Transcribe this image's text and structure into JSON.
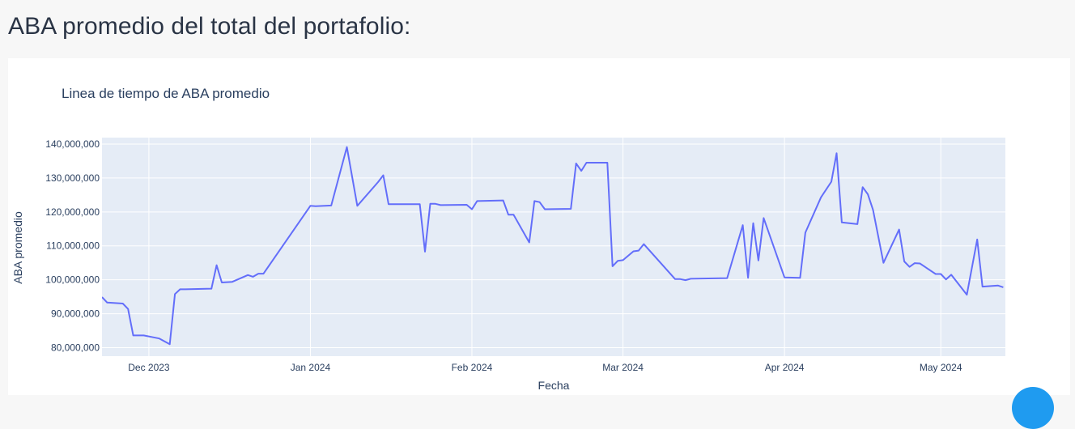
{
  "header": {
    "title": "ABA promedio del total del portafolio:"
  },
  "chart_data": {
    "type": "line",
    "title": "Linea de tiempo de ABA promedio",
    "xlabel": "Fecha",
    "ylabel": "ABA promedio",
    "xlim": [
      "2023-11-22",
      "2024-05-13"
    ],
    "ylim": [
      77500000,
      141900000
    ],
    "grid": true,
    "legend": "none",
    "line_color": "#636efa",
    "plot_bgcolor": "#e5ecf6",
    "x_ticks": [
      {
        "date": "2023-12-01",
        "label": "Dec 2023"
      },
      {
        "date": "2024-01-01",
        "label": "Jan 2024"
      },
      {
        "date": "2024-02-01",
        "label": "Feb 2024"
      },
      {
        "date": "2024-03-01",
        "label": "Mar 2024"
      },
      {
        "date": "2024-04-01",
        "label": "Apr 2024"
      },
      {
        "date": "2024-05-01",
        "label": "May 2024"
      }
    ],
    "y_ticks": [
      {
        "value": 80000000,
        "label": "80,000,000"
      },
      {
        "value": 90000000,
        "label": "90,000,000"
      },
      {
        "value": 100000000,
        "label": "100,000,000"
      },
      {
        "value": 110000000,
        "label": "110,000,000"
      },
      {
        "value": 120000000,
        "label": "120,000,000"
      },
      {
        "value": 130000000,
        "label": "130,000,000"
      },
      {
        "value": 140000000,
        "label": "140,000,000"
      }
    ],
    "x": [
      "2023-11-22",
      "2023-11-23",
      "2023-11-26",
      "2023-11-27",
      "2023-11-28",
      "2023-11-30",
      "2023-12-03",
      "2023-12-05",
      "2023-12-06",
      "2023-12-07",
      "2023-12-08",
      "2023-12-13",
      "2023-12-14",
      "2023-12-15",
      "2023-12-17",
      "2023-12-20",
      "2023-12-21",
      "2023-12-22",
      "2023-12-23",
      "2024-01-01",
      "2024-01-02",
      "2024-01-05",
      "2024-01-08",
      "2024-01-10",
      "2024-01-14",
      "2024-01-15",
      "2024-01-16",
      "2024-01-22",
      "2024-01-23",
      "2024-01-24",
      "2024-01-25",
      "2024-01-26",
      "2024-01-31",
      "2024-02-01",
      "2024-02-02",
      "2024-02-07",
      "2024-02-08",
      "2024-02-09",
      "2024-02-12",
      "2024-02-13",
      "2024-02-14",
      "2024-02-15",
      "2024-02-20",
      "2024-02-21",
      "2024-02-22",
      "2024-02-23",
      "2024-02-27",
      "2024-02-28",
      "2024-02-29",
      "2024-03-01",
      "2024-03-03",
      "2024-03-04",
      "2024-03-05",
      "2024-03-11",
      "2024-03-12",
      "2024-03-13",
      "2024-03-14",
      "2024-03-21",
      "2024-03-24",
      "2024-03-25",
      "2024-03-26",
      "2024-03-27",
      "2024-03-28",
      "2024-04-01",
      "2024-04-04",
      "2024-04-05",
      "2024-04-08",
      "2024-04-10",
      "2024-04-11",
      "2024-04-12",
      "2024-04-15",
      "2024-04-16",
      "2024-04-17",
      "2024-04-18",
      "2024-04-20",
      "2024-04-23",
      "2024-04-24",
      "2024-04-25",
      "2024-04-26",
      "2024-04-27",
      "2024-04-30",
      "2024-05-01",
      "2024-05-02",
      "2024-05-03",
      "2024-05-06",
      "2024-05-08",
      "2024-05-09",
      "2024-05-12",
      "2024-05-13"
    ],
    "series": [
      {
        "values": [
          94900000,
          93300000,
          93000000,
          91400000,
          83600000,
          83600000,
          82700000,
          81000000,
          95800000,
          97200000,
          97200000,
          97400000,
          104300000,
          99200000,
          99400000,
          101400000,
          100900000,
          101800000,
          101800000,
          121800000,
          121700000,
          121900000,
          139100000,
          121800000,
          128800000,
          130800000,
          122300000,
          122300000,
          108300000,
          122400000,
          122400000,
          122000000,
          122100000,
          120800000,
          123200000,
          123400000,
          119200000,
          119200000,
          111000000,
          123200000,
          122900000,
          120800000,
          120900000,
          134300000,
          132100000,
          134500000,
          134500000,
          104000000,
          105600000,
          105800000,
          108400000,
          108600000,
          110500000,
          100200000,
          100200000,
          99900000,
          100300000,
          100500000,
          116100000,
          100600000,
          116700000,
          105700000,
          118200000,
          100700000,
          100600000,
          113900000,
          124300000,
          128900000,
          137300000,
          116900000,
          116400000,
          127300000,
          125200000,
          120600000,
          105000000,
          114800000,
          105400000,
          103800000,
          104900000,
          104800000,
          101700000,
          101700000,
          100100000,
          101500000,
          95600000,
          111900000,
          98000000,
          98300000,
          97800000
        ]
      }
    ]
  }
}
